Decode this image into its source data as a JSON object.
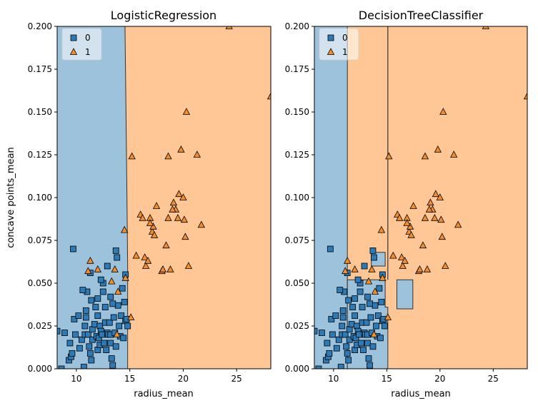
{
  "figure": {
    "ylabel": "concave points_mean"
  },
  "chart_data": [
    {
      "type": "scatter",
      "title": "LogisticRegression",
      "xlabel": "radius_mean",
      "ylabel": "concave points_mean",
      "xlim": [
        8.2,
        28.2
      ],
      "ylim": [
        0,
        0.2
      ],
      "xticks": [
        10,
        15,
        20,
        25
      ],
      "yticks": [
        0.0,
        0.025,
        0.05,
        0.075,
        0.1,
        0.125,
        0.15,
        0.175,
        0.2
      ],
      "ytick_labels": [
        "0.000",
        "0.025",
        "0.050",
        "0.075",
        "0.100",
        "0.125",
        "0.150",
        "0.175",
        "0.200"
      ],
      "legend": {
        "position": "top-left",
        "entries": [
          {
            "label": "0",
            "marker": "square"
          },
          {
            "label": "1",
            "marker": "triangle"
          }
        ]
      },
      "grid": false,
      "decision_regions": [
        {
          "class": "0",
          "polygon": [
            [
              8.2,
              0
            ],
            [
              14.8,
              0
            ],
            [
              14.8,
              0.06
            ],
            [
              14.7,
              0.12
            ],
            [
              14.55,
              0.2
            ],
            [
              8.2,
              0.2
            ]
          ]
        },
        {
          "class": "1",
          "polygon": [
            [
              14.8,
              0
            ],
            [
              28.2,
              0
            ],
            [
              28.2,
              0.2
            ],
            [
              14.55,
              0.2
            ],
            [
              14.7,
              0.12
            ],
            [
              14.8,
              0.06
            ]
          ]
        }
      ]
    },
    {
      "type": "scatter",
      "title": "DecisionTreeClassifier",
      "xlabel": "radius_mean",
      "xlim": [
        8.2,
        28.2
      ],
      "ylim": [
        0,
        0.2
      ],
      "xticks": [
        10,
        15,
        20,
        25
      ],
      "yticks": [
        0.0,
        0.025,
        0.05,
        0.075,
        0.1,
        0.125,
        0.15,
        0.175,
        0.2
      ],
      "ytick_labels": [
        "0.000",
        "0.025",
        "0.050",
        "0.075",
        "0.100",
        "0.125",
        "0.150",
        "0.175",
        "0.200"
      ],
      "legend": {
        "position": "top-left",
        "entries": [
          {
            "label": "0",
            "marker": "square"
          },
          {
            "label": "1",
            "marker": "triangle"
          }
        ]
      },
      "grid": false,
      "decision_regions": [
        {
          "class": "0",
          "polygon": [
            [
              8.2,
              0
            ],
            [
              11.3,
              0
            ],
            [
              11.3,
              0.2
            ],
            [
              8.2,
              0.2
            ]
          ]
        },
        {
          "class": "0",
          "polygon": [
            [
              11.3,
              0
            ],
            [
              15.1,
              0
            ],
            [
              15.1,
              0.036
            ],
            [
              14.85,
              0.036
            ],
            [
              14.85,
              0.052
            ],
            [
              11.3,
              0.052
            ]
          ]
        },
        {
          "class": "0",
          "polygon": [
            [
              13.55,
              0.06
            ],
            [
              14.85,
              0.06
            ],
            [
              14.85,
              0.068
            ],
            [
              13.55,
              0.068
            ]
          ]
        },
        {
          "class": "0",
          "polygon": [
            [
              15.95,
              0.035
            ],
            [
              17.45,
              0.035
            ],
            [
              17.45,
              0.052
            ],
            [
              15.95,
              0.052
            ]
          ]
        },
        {
          "class": "boundary",
          "polygon": [
            [
              15.1,
              0.052
            ],
            [
              15.1,
              0.2
            ]
          ]
        }
      ]
    }
  ],
  "points": {
    "class_0": [
      [
        8.2,
        0.022
      ],
      [
        8.6,
        0.0
      ],
      [
        8.9,
        0.021
      ],
      [
        9.3,
        0.005
      ],
      [
        9.4,
        0.015
      ],
      [
        9.5,
        0.007
      ],
      [
        9.6,
        0.009
      ],
      [
        9.8,
        0.029
      ],
      [
        9.9,
        0.02
      ],
      [
        10.2,
        0.031
      ],
      [
        10.3,
        0.012
      ],
      [
        10.5,
        0.017
      ],
      [
        10.7,
        0.001
      ],
      [
        10.8,
        0.025
      ],
      [
        10.9,
        0.03
      ],
      [
        11.0,
        0.045
      ],
      [
        10.8,
        0.02
      ],
      [
        11.1,
        0.02
      ],
      [
        11.2,
        0.013
      ],
      [
        11.3,
        0.009
      ],
      [
        11.4,
        0.005
      ],
      [
        11.5,
        0.023
      ],
      [
        11.5,
        0.017
      ],
      [
        11.7,
        0.026
      ],
      [
        11.8,
        0.036
      ],
      [
        11.9,
        0.019
      ],
      [
        12.0,
        0.011
      ],
      [
        12.0,
        0.031
      ],
      [
        12.1,
        0.018
      ],
      [
        12.2,
        0.014
      ],
      [
        12.2,
        0.025
      ],
      [
        12.3,
        0.022
      ],
      [
        12.4,
        0.02
      ],
      [
        12.5,
        0.05
      ],
      [
        12.5,
        0.045
      ],
      [
        12.6,
        0.015
      ],
      [
        12.7,
        0.027
      ],
      [
        12.8,
        0.011
      ],
      [
        12.9,
        0.021
      ],
      [
        13.0,
        0.02
      ],
      [
        13.1,
        0.027
      ],
      [
        13.2,
        0.02
      ],
      [
        13.2,
        0.015
      ],
      [
        13.3,
        0.006
      ],
      [
        13.4,
        0.002
      ],
      [
        13.5,
        0.03
      ],
      [
        13.6,
        0.021
      ],
      [
        13.7,
        0.013
      ],
      [
        13.8,
        0.065
      ],
      [
        13.9,
        0.037
      ],
      [
        14.0,
        0.025
      ],
      [
        14.1,
        0.019
      ],
      [
        14.2,
        0.031
      ],
      [
        14.3,
        0.047
      ],
      [
        14.4,
        0.018
      ],
      [
        14.5,
        0.039
      ],
      [
        14.6,
        0.028
      ],
      [
        14.7,
        0.029
      ],
      [
        14.8,
        0.025
      ],
      [
        9.7,
        0.07
      ],
      [
        13.7,
        0.069
      ],
      [
        12.9,
        0.06
      ],
      [
        11.3,
        0.056
      ],
      [
        13.2,
        0.042
      ],
      [
        12.3,
        0.052
      ],
      [
        14.6,
        0.055
      ],
      [
        10.6,
        0.046
      ],
      [
        11.4,
        0.04
      ],
      [
        12.0,
        0.041
      ],
      [
        13.4,
        0.038
      ],
      [
        12.7,
        0.036
      ],
      [
        10.9,
        0.034
      ]
    ],
    "class_1": [
      [
        11.1,
        0.057
      ],
      [
        11.3,
        0.063
      ],
      [
        12.0,
        0.058
      ],
      [
        13.3,
        0.051
      ],
      [
        13.6,
        0.058
      ],
      [
        13.9,
        0.045
      ],
      [
        14.5,
        0.081
      ],
      [
        14.6,
        0.053
      ],
      [
        15.2,
        0.124
      ],
      [
        15.1,
        0.03
      ],
      [
        13.8,
        0.02
      ],
      [
        15.6,
        0.066
      ],
      [
        16.0,
        0.09
      ],
      [
        16.2,
        0.088
      ],
      [
        16.4,
        0.065
      ],
      [
        16.5,
        0.06
      ],
      [
        16.7,
        0.063
      ],
      [
        16.9,
        0.088
      ],
      [
        17.1,
        0.08
      ],
      [
        17.2,
        0.083
      ],
      [
        17.3,
        0.078
      ],
      [
        17.5,
        0.095
      ],
      [
        18.0,
        0.057
      ],
      [
        18.1,
        0.058
      ],
      [
        18.4,
        0.072
      ],
      [
        18.6,
        0.088
      ],
      [
        18.6,
        0.124
      ],
      [
        18.8,
        0.058
      ],
      [
        19.1,
        0.097
      ],
      [
        19.3,
        0.093
      ],
      [
        19.5,
        0.088
      ],
      [
        19.6,
        0.102
      ],
      [
        19.8,
        0.128
      ],
      [
        20.0,
        0.1
      ],
      [
        20.1,
        0.087
      ],
      [
        20.2,
        0.077
      ],
      [
        20.3,
        0.15
      ],
      [
        20.5,
        0.06
      ],
      [
        21.3,
        0.125
      ],
      [
        21.7,
        0.084
      ],
      [
        24.3,
        0.2
      ],
      [
        28.2,
        0.159
      ],
      [
        16.9,
        0.085
      ],
      [
        19.0,
        0.093
      ]
    ]
  },
  "colors": {
    "class_0_region": "#9cc2dc",
    "class_1_region": "#fec795",
    "class_0_marker": "#2c7bb6",
    "class_1_marker": "#f28e2b"
  }
}
